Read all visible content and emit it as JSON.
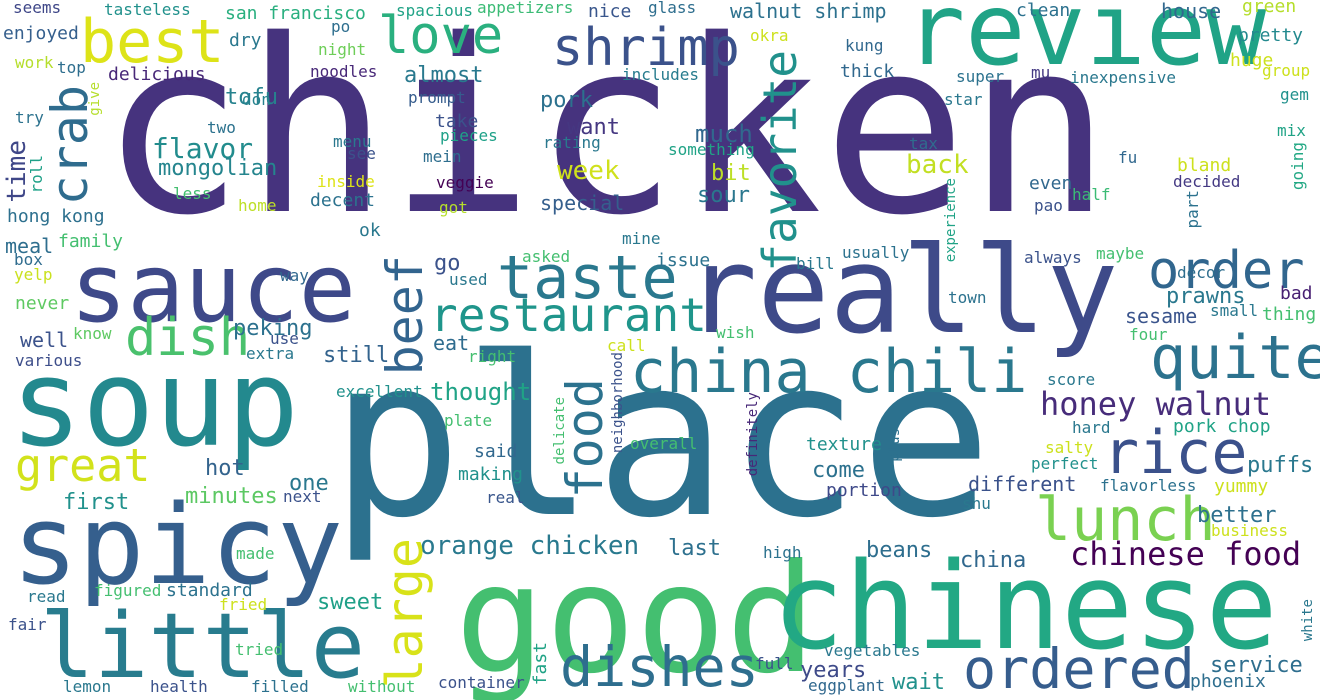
{
  "words": [
    {
      "text": "chicken",
      "color": "#46337e"
    },
    {
      "text": "place",
      "color": "#2c718e"
    },
    {
      "text": "good",
      "color": "#44bf70"
    },
    {
      "text": "chinese",
      "color": "#22a884"
    },
    {
      "text": "review",
      "color": "#20a386"
    },
    {
      "text": "really",
      "color": "#3e4a89"
    },
    {
      "text": "soup",
      "color": "#23898e"
    },
    {
      "text": "spicy",
      "color": "#355f8d"
    },
    {
      "text": "sauce",
      "color": "#3e4989"
    },
    {
      "text": "little",
      "color": "#287c8e"
    },
    {
      "text": "china chili",
      "color": "#2a788e"
    },
    {
      "text": "dishes",
      "color": "#2e6e8e"
    },
    {
      "text": "ordered",
      "color": "#365d8d"
    },
    {
      "text": "lunch",
      "color": "#7ad151"
    },
    {
      "text": "rice",
      "color": "#3b518b"
    },
    {
      "text": "quite",
      "color": "#2c728e"
    },
    {
      "text": "order",
      "color": "#31668e"
    },
    {
      "text": "taste",
      "color": "#2a788e"
    },
    {
      "text": "restaurant",
      "color": "#1f958b"
    },
    {
      "text": "love",
      "color": "#2ab07f"
    },
    {
      "text": "shrimp",
      "color": "#3b528b"
    },
    {
      "text": "best",
      "color": "#dde318"
    },
    {
      "text": "dish",
      "color": "#4ac16d"
    },
    {
      "text": "great",
      "color": "#d2e21b"
    },
    {
      "text": "honey walnut",
      "color": "#472c7a"
    },
    {
      "text": "chinese food",
      "color": "#440154"
    },
    {
      "text": "orange chicken",
      "color": "#29798e"
    },
    {
      "text": "crab",
      "color": "#2f6c8e"
    },
    {
      "text": "beef",
      "color": "#32648e"
    },
    {
      "text": "large",
      "color": "#d8e219"
    },
    {
      "text": "food",
      "color": "#2c728e"
    },
    {
      "text": "favorite",
      "color": "#21918c"
    },
    {
      "text": "flavor",
      "color": "#228c8d"
    },
    {
      "text": "mongolian",
      "color": "#25858e"
    },
    {
      "text": "tofu",
      "color": "#26828e"
    },
    {
      "text": "almost",
      "color": "#29798e"
    },
    {
      "text": "pork",
      "color": "#2c718e"
    },
    {
      "text": "want",
      "color": "#453781"
    },
    {
      "text": "much",
      "color": "#31688e"
    },
    {
      "text": "week",
      "color": "#d0e11c"
    },
    {
      "text": "bit",
      "color": "#bddf26"
    },
    {
      "text": "sour",
      "color": "#2a778e"
    },
    {
      "text": "special",
      "color": "#355f8d"
    },
    {
      "text": "back",
      "color": "#c2df23"
    },
    {
      "text": "prawns",
      "color": "#2a788e"
    },
    {
      "text": "sesame",
      "color": "#3a548c"
    },
    {
      "text": "bad",
      "color": "#482173"
    },
    {
      "text": "go",
      "color": "#3b528b"
    },
    {
      "text": "eat",
      "color": "#2f6c8e"
    },
    {
      "text": "peking",
      "color": "#2c718e"
    },
    {
      "text": "still",
      "color": "#33638d"
    },
    {
      "text": "thought",
      "color": "#20a386"
    },
    {
      "text": "hot",
      "color": "#33638d"
    },
    {
      "text": "one",
      "color": "#2a788e"
    },
    {
      "text": "minutes",
      "color": "#5cc863"
    },
    {
      "text": "first",
      "color": "#21918c"
    },
    {
      "text": "sweet",
      "color": "#1fa088"
    },
    {
      "text": "last",
      "color": "#2d708e"
    },
    {
      "text": "beans",
      "color": "#2e6e8e"
    },
    {
      "text": "china",
      "color": "#31688e"
    },
    {
      "text": "better",
      "color": "#2d708e"
    },
    {
      "text": "puffs",
      "color": "#2a788e"
    },
    {
      "text": "service",
      "color": "#2e6e8e"
    },
    {
      "text": "years",
      "color": "#3e4a89"
    },
    {
      "text": "wait",
      "color": "#21918c"
    },
    {
      "text": "come",
      "color": "#2c718e"
    },
    {
      "text": "portion",
      "color": "#3e4989"
    },
    {
      "text": "texture",
      "color": "#21918c"
    },
    {
      "text": "different",
      "color": "#3b528b"
    },
    {
      "text": "said",
      "color": "#31688e"
    },
    {
      "text": "making",
      "color": "#21918c"
    },
    {
      "text": "real",
      "color": "#39568c"
    },
    {
      "text": "time",
      "color": "#3f4788"
    },
    {
      "text": "hong kong",
      "color": "#2d708e"
    },
    {
      "text": "meal",
      "color": "#2e6e8e"
    },
    {
      "text": "family",
      "color": "#44bf70"
    },
    {
      "text": "well",
      "color": "#3b528b"
    },
    {
      "text": "never",
      "color": "#5ec962"
    },
    {
      "text": "various",
      "color": "#3d4e8a"
    },
    {
      "text": "delicious",
      "color": "#482878"
    },
    {
      "text": "enjoyed",
      "color": "#355f8d"
    },
    {
      "text": "seems",
      "color": "#3f4788"
    },
    {
      "text": "work",
      "color": "#b5de2b"
    },
    {
      "text": "top",
      "color": "#2e6e8e"
    },
    {
      "text": "give",
      "color": "#b5de2b"
    },
    {
      "text": "try",
      "color": "#2c728e"
    },
    {
      "text": "roll",
      "color": "#1fa188"
    },
    {
      "text": "box",
      "color": "#2f6c8e"
    },
    {
      "text": "yelp",
      "color": "#cae11f"
    },
    {
      "text": "know",
      "color": "#5ec962"
    },
    {
      "text": "tasteless",
      "color": "#21918c"
    },
    {
      "text": "san francisco",
      "color": "#29af7f"
    },
    {
      "text": "dry",
      "color": "#2a788e"
    },
    {
      "text": "don",
      "color": "#26828e"
    },
    {
      "text": "spacious",
      "color": "#20a386"
    },
    {
      "text": "appetizers",
      "color": "#3bbb75"
    },
    {
      "text": "nice",
      "color": "#39568c"
    },
    {
      "text": "glass",
      "color": "#2e6e8e"
    },
    {
      "text": "walnut shrimp",
      "color": "#2c718e"
    },
    {
      "text": "clean",
      "color": "#2c718e"
    },
    {
      "text": "house",
      "color": "#31688e"
    },
    {
      "text": "green",
      "color": "#b5de2b"
    },
    {
      "text": "pretty",
      "color": "#23898e"
    },
    {
      "text": "huge",
      "color": "#cde11d"
    },
    {
      "text": "group",
      "color": "#cde11d"
    },
    {
      "text": "gem",
      "color": "#21918c"
    },
    {
      "text": "mix",
      "color": "#20a386"
    },
    {
      "text": "going",
      "color": "#22a884"
    },
    {
      "text": "night",
      "color": "#6ece58"
    },
    {
      "text": "noodles",
      "color": "#482878"
    },
    {
      "text": "po",
      "color": "#2e6e8e"
    },
    {
      "text": "okra",
      "color": "#cde11d"
    },
    {
      "text": "kung",
      "color": "#31688e"
    },
    {
      "text": "thick",
      "color": "#31688e"
    },
    {
      "text": "super",
      "color": "#2c728e"
    },
    {
      "text": "mu",
      "color": "#443983"
    },
    {
      "text": "inexpensive",
      "color": "#2a788e"
    },
    {
      "text": "star",
      "color": "#2a788e"
    },
    {
      "text": "includes",
      "color": "#287c8e"
    },
    {
      "text": "prompt",
      "color": "#365c8d"
    },
    {
      "text": "two",
      "color": "#2c728e"
    },
    {
      "text": "menu",
      "color": "#2a788e"
    },
    {
      "text": "see",
      "color": "#3b528b"
    },
    {
      "text": "pieces",
      "color": "#1fa188"
    },
    {
      "text": "rating",
      "color": "#2a788e"
    },
    {
      "text": "mein",
      "color": "#2e6e8e"
    },
    {
      "text": "something",
      "color": "#20a386"
    },
    {
      "text": "take",
      "color": "#3b528b"
    },
    {
      "text": "tax",
      "color": "#2f6c8e"
    },
    {
      "text": "fu",
      "color": "#31688e"
    },
    {
      "text": "bland",
      "color": "#cde11d"
    },
    {
      "text": "decided",
      "color": "#443983"
    },
    {
      "text": "inside",
      "color": "#dde318"
    },
    {
      "text": "less",
      "color": "#44bf70"
    },
    {
      "text": "home",
      "color": "#bddf26"
    },
    {
      "text": "veggie",
      "color": "#440154"
    },
    {
      "text": "got",
      "color": "#b5de2b"
    },
    {
      "text": "decent",
      "color": "#2c728e"
    },
    {
      "text": "even",
      "color": "#31688e"
    },
    {
      "text": "half",
      "color": "#3bbb75"
    },
    {
      "text": "experience",
      "color": "#20a386"
    },
    {
      "text": "part",
      "color": "#2c728e"
    },
    {
      "text": "pao",
      "color": "#3b528b"
    },
    {
      "text": "ok",
      "color": "#2a788e"
    },
    {
      "text": "mine",
      "color": "#2a788e"
    },
    {
      "text": "asked",
      "color": "#44bf70"
    },
    {
      "text": "issue",
      "color": "#2c728e"
    },
    {
      "text": "used",
      "color": "#2a788e"
    },
    {
      "text": "usually",
      "color": "#2c728e"
    },
    {
      "text": "bill",
      "color": "#2a788e"
    },
    {
      "text": "always",
      "color": "#3b528b"
    },
    {
      "text": "maybe",
      "color": "#44bf70"
    },
    {
      "text": "décor",
      "color": "#2e6e8e"
    },
    {
      "text": "town",
      "color": "#2c728e"
    },
    {
      "text": "small",
      "color": "#2a788e"
    },
    {
      "text": "thing",
      "color": "#44bf70"
    },
    {
      "text": "four",
      "color": "#44bf70"
    },
    {
      "text": "way",
      "color": "#31688e"
    },
    {
      "text": "use",
      "color": "#3b528b"
    },
    {
      "text": "extra",
      "color": "#2a788e"
    },
    {
      "text": "call",
      "color": "#cde11d"
    },
    {
      "text": "right",
      "color": "#44bf70"
    },
    {
      "text": "wish",
      "color": "#44bf70"
    },
    {
      "text": "neighborhood",
      "color": "#3b528b"
    },
    {
      "text": "excellent",
      "color": "#21918c"
    },
    {
      "text": "score",
      "color": "#2a788e"
    },
    {
      "text": "delicate",
      "color": "#44bf70"
    },
    {
      "text": "definitely",
      "color": "#482878"
    },
    {
      "text": "plate",
      "color": "#44bf70"
    },
    {
      "text": "overall",
      "color": "#44bf70"
    },
    {
      "text": "plus",
      "color": "#2c718e"
    },
    {
      "text": "hard",
      "color": "#2a788e"
    },
    {
      "text": "pork chop",
      "color": "#20a386"
    },
    {
      "text": "salty",
      "color": "#cde11d"
    },
    {
      "text": "perfect",
      "color": "#21918c"
    },
    {
      "text": "flavorless",
      "color": "#2c718e"
    },
    {
      "text": "yummy",
      "color": "#cde11d"
    },
    {
      "text": "shu",
      "color": "#2a788e"
    },
    {
      "text": "business",
      "color": "#cde11d"
    },
    {
      "text": "next",
      "color": "#3b528b"
    },
    {
      "text": "made",
      "color": "#44bf70"
    },
    {
      "text": "standard",
      "color": "#2c728e"
    },
    {
      "text": "figured",
      "color": "#44bf70"
    },
    {
      "text": "fried",
      "color": "#cde11d"
    },
    {
      "text": "read",
      "color": "#2a788e"
    },
    {
      "text": "fair",
      "color": "#3b528b"
    },
    {
      "text": "tried",
      "color": "#44bf70"
    },
    {
      "text": "high",
      "color": "#2c728e"
    },
    {
      "text": "vegetables",
      "color": "#2a788e"
    },
    {
      "text": "full",
      "color": "#3b528b"
    },
    {
      "text": "eggplant",
      "color": "#31688e"
    },
    {
      "text": "fast",
      "color": "#20a386"
    },
    {
      "text": "container",
      "color": "#3b528b"
    },
    {
      "text": "phoenix",
      "color": "#2e6e8e"
    },
    {
      "text": "white",
      "color": "#2a788e"
    },
    {
      "text": "lemon",
      "color": "#2a788e"
    },
    {
      "text": "health",
      "color": "#3b528b"
    },
    {
      "text": "filled",
      "color": "#2c718e"
    },
    {
      "text": "without",
      "color": "#44bf70"
    }
  ]
}
